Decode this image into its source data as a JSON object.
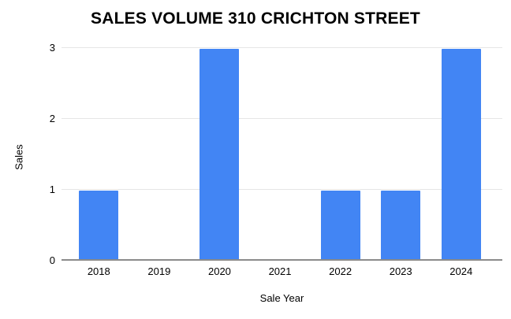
{
  "chart_data": {
    "type": "bar",
    "title": "SALES VOLUME 310 CRICHTON STREET",
    "categories": [
      "2018",
      "2019",
      "2020",
      "2021",
      "2022",
      "2023",
      "2024"
    ],
    "values": [
      1,
      0,
      3,
      0,
      1,
      1,
      3
    ],
    "xlabel": "Sale Year",
    "ylabel": "Sales",
    "yticks": [
      0,
      1,
      2,
      3
    ],
    "ylim": [
      0,
      3
    ],
    "grid": true,
    "legend_position": "none",
    "bar_color": "#4285f4",
    "gridline_color": "#e6e6e6",
    "axis_line_color": "#8b8b8b",
    "text_color": "#000000",
    "background_color": "#ffffff"
  }
}
